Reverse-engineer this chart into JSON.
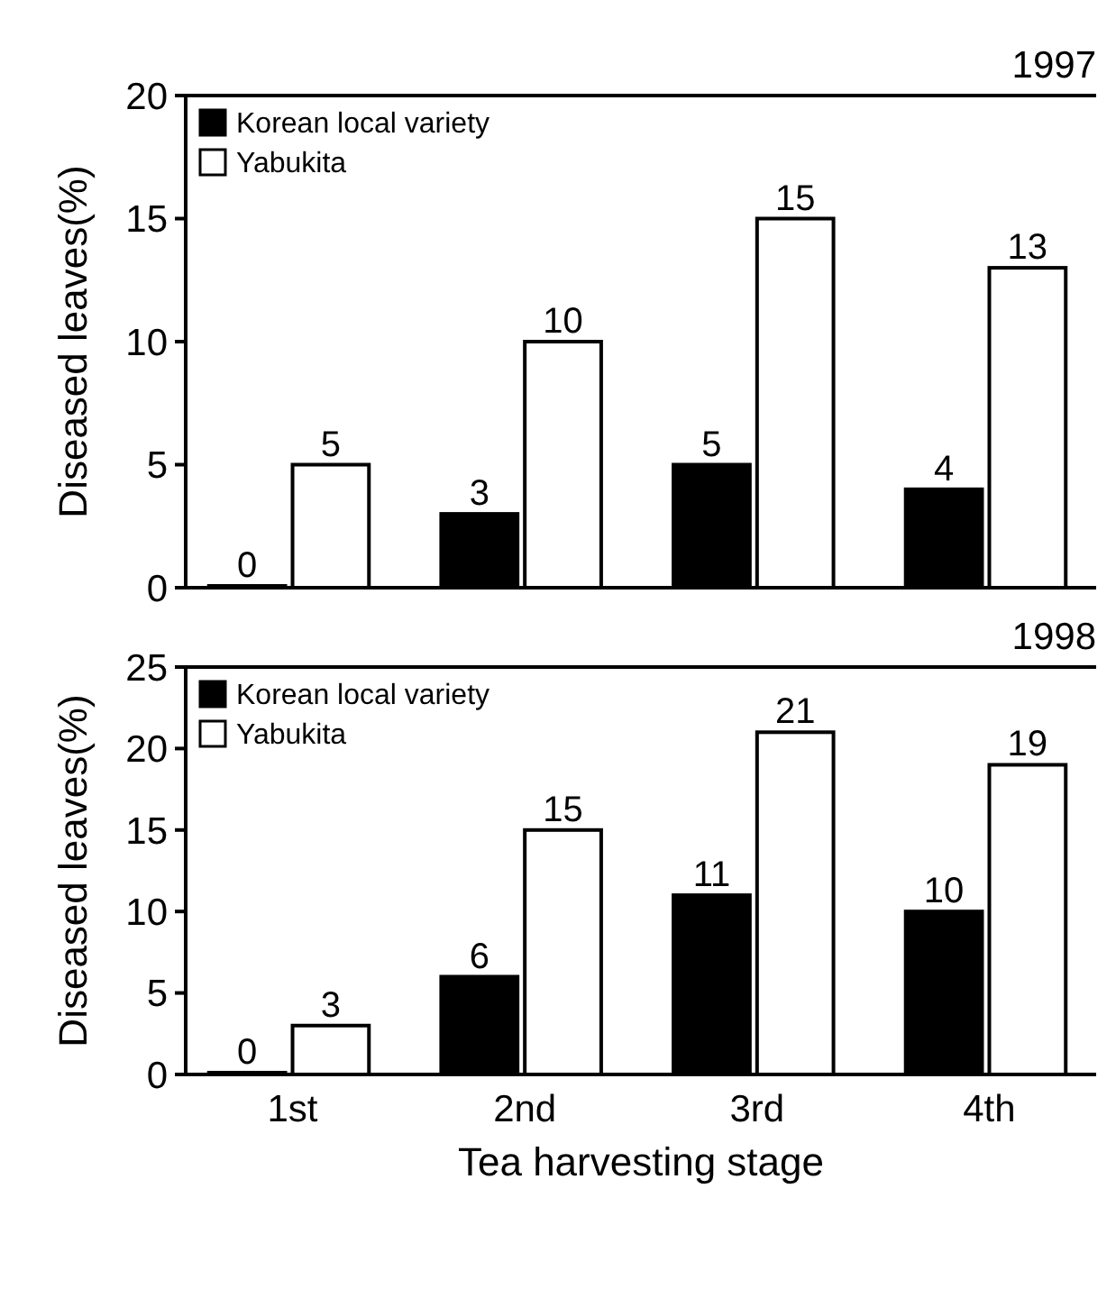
{
  "chart_data": [
    {
      "type": "bar",
      "title": "1997",
      "ylabel": "Diseased leaves(%)",
      "series": [
        {
          "name": "Korean local variety",
          "color": "#000000",
          "values": [
            0,
            3,
            5,
            4
          ]
        },
        {
          "name": "Yabukita",
          "color": "#ffffff",
          "values": [
            5,
            10,
            15,
            13
          ]
        }
      ],
      "ylim": [
        0,
        20
      ],
      "yticks": [
        0,
        5,
        10,
        15,
        20
      ],
      "data_labels": true,
      "legend": "top left",
      "tick_labels": "y",
      "grid": false
    },
    {
      "type": "bar",
      "title": "1998",
      "ylabel": "Diseased leaves(%)",
      "xlabel": "Tea harvesting stage",
      "categories": [
        "1st",
        "2nd",
        "3rd",
        "4th"
      ],
      "series": [
        {
          "name": "Korean local variety",
          "color": "#000000",
          "values": [
            0,
            6,
            11,
            10
          ]
        },
        {
          "name": "Yabukita",
          "color": "#ffffff",
          "values": [
            3,
            15,
            21,
            19
          ]
        }
      ],
      "ylim": [
        0,
        25
      ],
      "yticks": [
        0,
        5,
        10,
        15,
        20,
        25
      ],
      "data_labels": true,
      "legend": "top left",
      "grid": false
    }
  ]
}
